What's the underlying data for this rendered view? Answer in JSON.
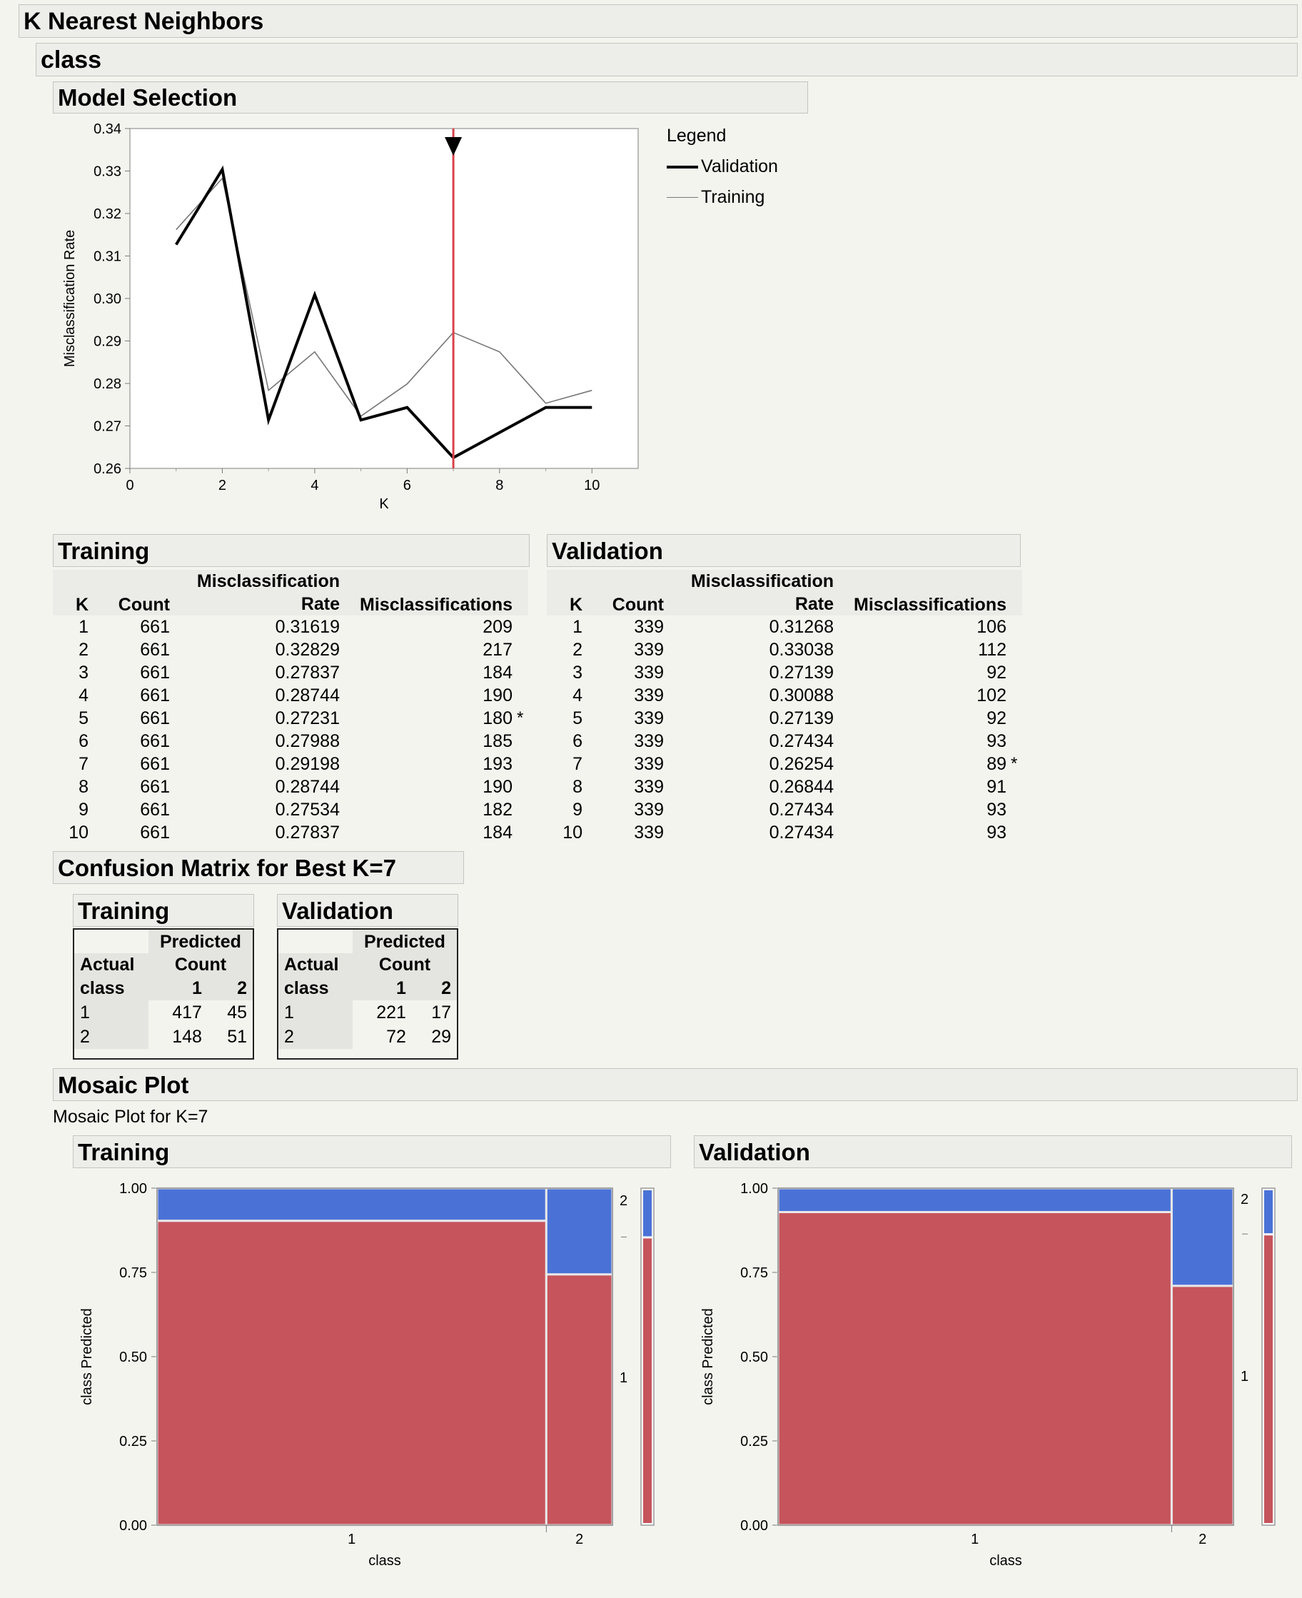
{
  "report": {
    "title": "K Nearest Neighbors",
    "response": "class",
    "model_selection": {
      "title": "Model Selection",
      "legend_title": "Legend",
      "legend": [
        "Validation",
        "Training"
      ]
    },
    "training_table": {
      "title": "Training",
      "headers": {
        "k": "K",
        "count": "Count",
        "rate_top": "Misclassification",
        "rate_bottom": "Rate",
        "miscl": "Misclassifications"
      },
      "rows": [
        {
          "k": "1",
          "count": "661",
          "rate": "0.31619",
          "miscl": "209"
        },
        {
          "k": "2",
          "count": "661",
          "rate": "0.32829",
          "miscl": "217"
        },
        {
          "k": "3",
          "count": "661",
          "rate": "0.27837",
          "miscl": "184"
        },
        {
          "k": "4",
          "count": "661",
          "rate": "0.28744",
          "miscl": "190"
        },
        {
          "k": "5",
          "count": "661",
          "rate": "0.27231",
          "miscl": "180"
        },
        {
          "k": "6",
          "count": "661",
          "rate": "0.27988",
          "miscl": "185"
        },
        {
          "k": "7",
          "count": "661",
          "rate": "0.29198",
          "miscl": "193"
        },
        {
          "k": "8",
          "count": "661",
          "rate": "0.28744",
          "miscl": "190"
        },
        {
          "k": "9",
          "count": "661",
          "rate": "0.27534",
          "miscl": "182"
        },
        {
          "k": "10",
          "count": "661",
          "rate": "0.27837",
          "miscl": "184"
        }
      ],
      "best_marker": "*",
      "best_index": 4
    },
    "validation_table": {
      "title": "Validation",
      "headers": {
        "k": "K",
        "count": "Count",
        "rate_top": "Misclassification",
        "rate_bottom": "Rate",
        "miscl": "Misclassifications"
      },
      "rows": [
        {
          "k": "1",
          "count": "339",
          "rate": "0.31268",
          "miscl": "106"
        },
        {
          "k": "2",
          "count": "339",
          "rate": "0.33038",
          "miscl": "112"
        },
        {
          "k": "3",
          "count": "339",
          "rate": "0.27139",
          "miscl": "92"
        },
        {
          "k": "4",
          "count": "339",
          "rate": "0.30088",
          "miscl": "102"
        },
        {
          "k": "5",
          "count": "339",
          "rate": "0.27139",
          "miscl": "92"
        },
        {
          "k": "6",
          "count": "339",
          "rate": "0.27434",
          "miscl": "93"
        },
        {
          "k": "7",
          "count": "339",
          "rate": "0.26254",
          "miscl": "89"
        },
        {
          "k": "8",
          "count": "339",
          "rate": "0.26844",
          "miscl": "91"
        },
        {
          "k": "9",
          "count": "339",
          "rate": "0.27434",
          "miscl": "93"
        },
        {
          "k": "10",
          "count": "339",
          "rate": "0.27434",
          "miscl": "93"
        }
      ],
      "best_marker": "*",
      "best_index": 6
    },
    "confusion": {
      "title": "Confusion Matrix for Best K=7",
      "training": {
        "title": "Training",
        "h_actual": "Actual",
        "h_class": "class",
        "h_predicted": "Predicted",
        "h_count": "Count",
        "cols": [
          "1",
          "2"
        ],
        "rows": [
          {
            "label": "1",
            "values": [
              "417",
              "45"
            ]
          },
          {
            "label": "2",
            "values": [
              "148",
              "51"
            ]
          }
        ]
      },
      "validation": {
        "title": "Validation",
        "h_actual": "Actual",
        "h_class": "class",
        "h_predicted": "Predicted",
        "h_count": "Count",
        "cols": [
          "1",
          "2"
        ],
        "rows": [
          {
            "label": "1",
            "values": [
              "221",
              "17"
            ]
          },
          {
            "label": "2",
            "values": [
              "72",
              "29"
            ]
          }
        ]
      }
    },
    "mosaic": {
      "title": "Mosaic Plot",
      "subtitle": "Mosaic Plot for K=7",
      "training_title": "Training",
      "validation_title": "Validation"
    }
  },
  "colors": {
    "class1": "#c5545c",
    "class2": "#4a72d6",
    "selector": "#d9424a",
    "frame": "#8a8a8a"
  },
  "chart_data": [
    {
      "type": "line",
      "x": [
        1,
        2,
        3,
        4,
        5,
        6,
        7,
        8,
        9,
        10
      ],
      "series": [
        {
          "name": "Validation",
          "values": [
            0.31268,
            0.33038,
            0.27139,
            0.30088,
            0.27139,
            0.27434,
            0.26254,
            0.26844,
            0.27434,
            0.27434
          ]
        },
        {
          "name": "Training",
          "values": [
            0.31619,
            0.32829,
            0.27837,
            0.28744,
            0.27231,
            0.27988,
            0.29198,
            0.28744,
            0.27534,
            0.27837
          ]
        }
      ],
      "xlabel": "K",
      "ylabel": "Misclassification Rate",
      "xlim": [
        0,
        11
      ],
      "ylim": [
        0.26,
        0.34
      ],
      "xticks": [
        "0",
        "2",
        "4",
        "6",
        "8",
        "10"
      ],
      "yticks": [
        "0.26",
        "0.27",
        "0.28",
        "0.29",
        "0.30",
        "0.31",
        "0.32",
        "0.33",
        "0.34"
      ],
      "selected_k": 7,
      "legend_position": "right"
    },
    {
      "type": "mosaic",
      "title": "Training",
      "x_categories": [
        "1",
        "2"
      ],
      "column_counts": [
        565,
        96
      ],
      "predicted_levels": [
        "1",
        "2"
      ],
      "share_predicted_2": [
        0.097,
        0.256
      ],
      "marginal_predicted_2": 0.145,
      "xlabel": "class",
      "ylabel": "class Predicted",
      "yticks": [
        "0.00",
        "0.25",
        "0.50",
        "0.75",
        "1.00"
      ]
    },
    {
      "type": "mosaic",
      "title": "Validation",
      "x_categories": [
        "1",
        "2"
      ],
      "column_counts": [
        293,
        46
      ],
      "predicted_levels": [
        "1",
        "2"
      ],
      "share_predicted_2": [
        0.071,
        0.29
      ],
      "marginal_predicted_2": 0.136,
      "xlabel": "class",
      "ylabel": "class Predicted",
      "yticks": [
        "0.00",
        "0.25",
        "0.50",
        "0.75",
        "1.00"
      ]
    }
  ]
}
